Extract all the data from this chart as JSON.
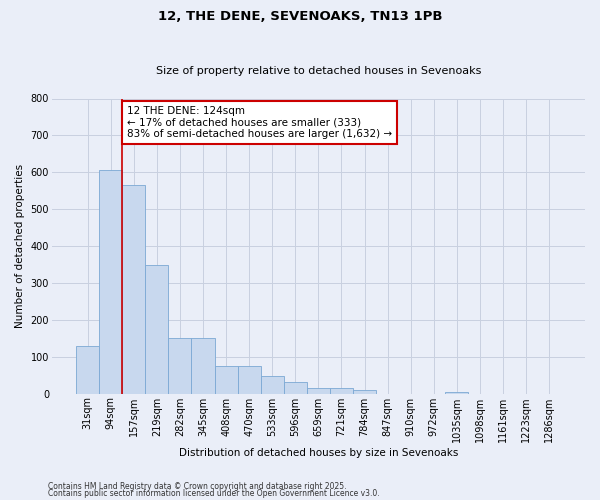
{
  "title1": "12, THE DENE, SEVENOAKS, TN13 1PB",
  "title2": "Size of property relative to detached houses in Sevenoaks",
  "xlabel": "Distribution of detached houses by size in Sevenoaks",
  "ylabel": "Number of detached properties",
  "categories": [
    "31sqm",
    "94sqm",
    "157sqm",
    "219sqm",
    "282sqm",
    "345sqm",
    "408sqm",
    "470sqm",
    "533sqm",
    "596sqm",
    "659sqm",
    "721sqm",
    "784sqm",
    "847sqm",
    "910sqm",
    "972sqm",
    "1035sqm",
    "1098sqm",
    "1161sqm",
    "1223sqm",
    "1286sqm"
  ],
  "values": [
    130,
    605,
    565,
    350,
    150,
    150,
    75,
    75,
    48,
    32,
    15,
    15,
    10,
    0,
    0,
    0,
    5,
    0,
    0,
    0,
    0
  ],
  "bar_color": "#c8d8ee",
  "bar_edge_color": "#7ba8d4",
  "grid_color": "#c8d0e0",
  "background_color": "#eaeef8",
  "vline_x_index": 1.5,
  "vline_color": "#cc0000",
  "annotation_text": "12 THE DENE: 124sqm\n← 17% of detached houses are smaller (333)\n83% of semi-detached houses are larger (1,632) →",
  "annotation_box_color": "#ffffff",
  "annotation_box_edge": "#cc0000",
  "ylim": [
    0,
    800
  ],
  "yticks": [
    0,
    100,
    200,
    300,
    400,
    500,
    600,
    700,
    800
  ],
  "footer1": "Contains HM Land Registry data © Crown copyright and database right 2025.",
  "footer2": "Contains public sector information licensed under the Open Government Licence v3.0.",
  "title1_fontsize": 9.5,
  "title2_fontsize": 8,
  "axis_label_fontsize": 7.5,
  "tick_fontsize": 7,
  "footer_fontsize": 5.5,
  "annotation_fontsize": 7.5
}
